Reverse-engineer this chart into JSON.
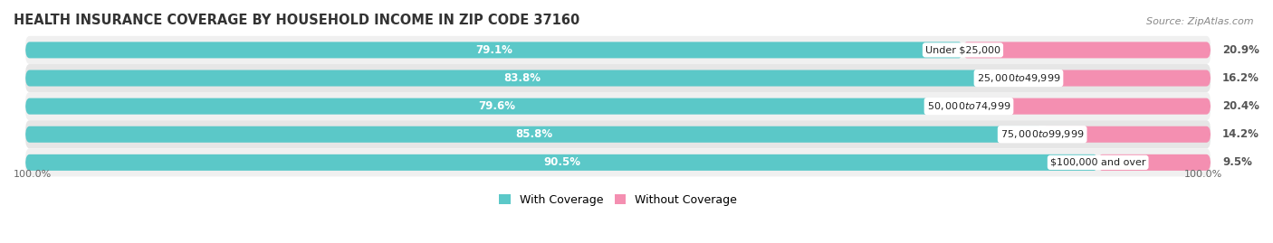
{
  "title": "HEALTH INSURANCE COVERAGE BY HOUSEHOLD INCOME IN ZIP CODE 37160",
  "source": "Source: ZipAtlas.com",
  "categories": [
    "Under $25,000",
    "$25,000 to $49,999",
    "$50,000 to $74,999",
    "$75,000 to $99,999",
    "$100,000 and over"
  ],
  "with_coverage": [
    79.1,
    83.8,
    79.6,
    85.8,
    90.5
  ],
  "without_coverage": [
    20.9,
    16.2,
    20.4,
    14.2,
    9.5
  ],
  "coverage_color": "#5bc8c8",
  "no_coverage_color": "#f48fb1",
  "row_bg_colors": [
    "#f0f0f0",
    "#e6e6e6"
  ],
  "bar_height": 0.58,
  "label_color_coverage": "#ffffff",
  "label_color_no_coverage": "#555555",
  "title_fontsize": 10.5,
  "label_fontsize": 8.5,
  "legend_fontsize": 9,
  "source_fontsize": 8,
  "axis_label_fontsize": 8,
  "background_color": "#ffffff",
  "left_axis_label": "100.0%",
  "right_axis_label": "100.0%"
}
